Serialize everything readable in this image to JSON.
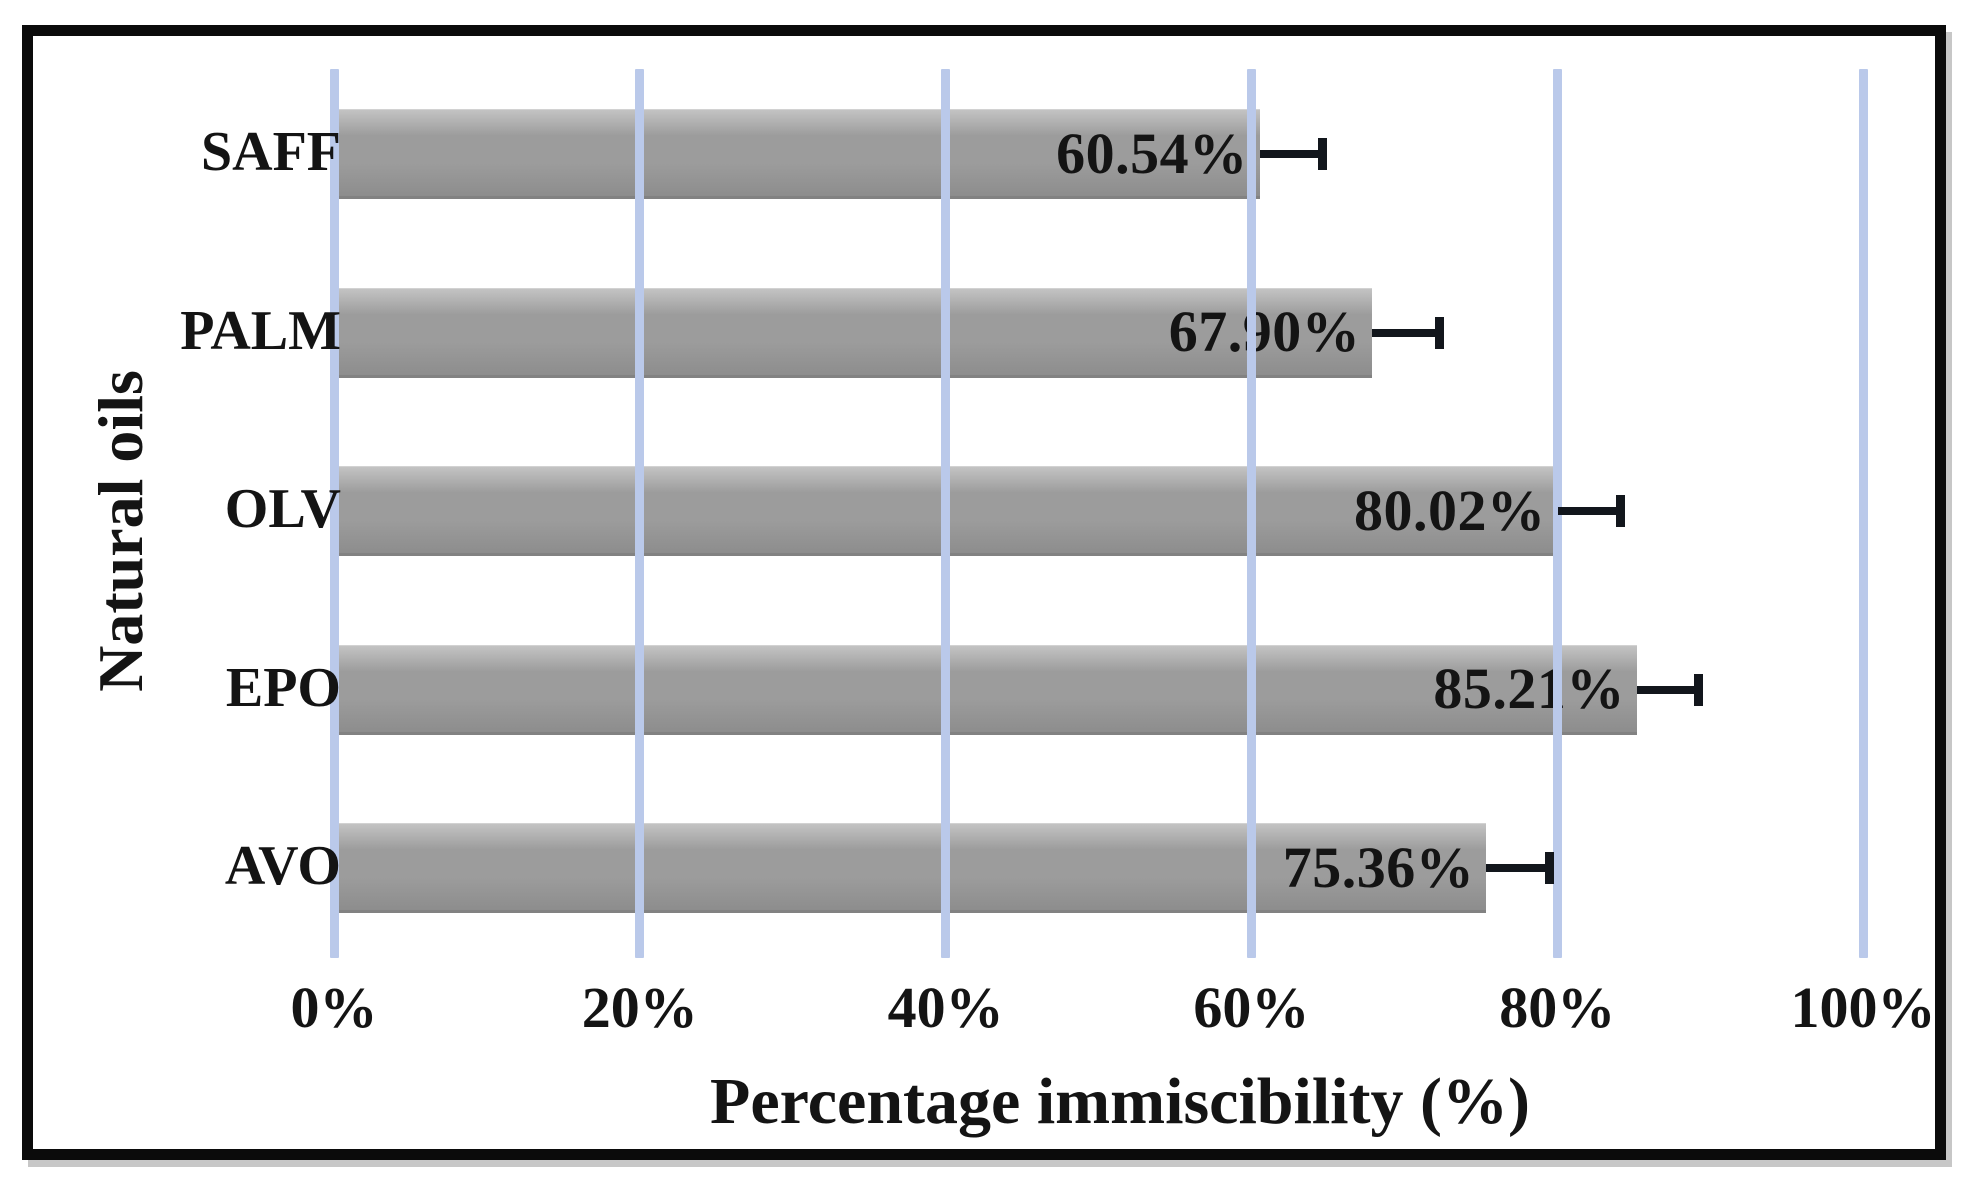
{
  "figure": {
    "background": "#ffffff",
    "frame_color": "#0b0b0b"
  },
  "chart_data": {
    "type": "bar",
    "orientation": "horizontal",
    "title": "",
    "xlabel": "Percentage immiscibility (%)",
    "ylabel": "Natural oils",
    "categories": [
      "SAFF",
      "PALM",
      "OLV",
      "EPO",
      "AVO"
    ],
    "values": [
      60.54,
      67.9,
      80.02,
      85.21,
      75.36
    ],
    "value_labels": [
      "60.54%",
      "67.90%",
      "80.02%",
      "85.21%",
      "75.36%"
    ],
    "error_plus": [
      4.1,
      4.4,
      4.1,
      4.0,
      4.1
    ],
    "xlim": [
      0,
      100
    ],
    "x_ticks": [
      0,
      20,
      40,
      60,
      80,
      100
    ],
    "x_tick_labels": [
      "0%",
      "20%",
      "40%",
      "60%",
      "80%",
      "100%"
    ],
    "grid": "vertical",
    "legend": "none",
    "colors": {
      "bar_top": "#c3c3c3",
      "bar_mid": "#9c9c9c",
      "bar_bottom": "#8d8d8d",
      "gridline": "#bac9ea",
      "error_bar": "#12161c",
      "text": "#141414"
    }
  }
}
